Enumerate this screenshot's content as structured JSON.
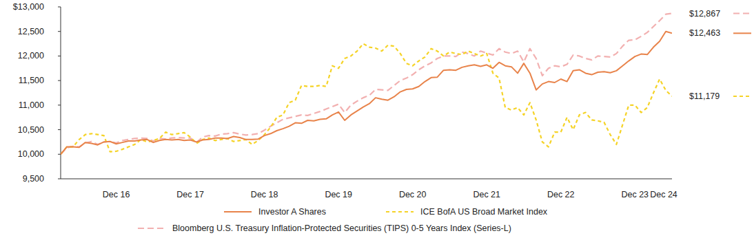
{
  "chart_data": {
    "type": "line",
    "categories": [
      null,
      null,
      null,
      null,
      null,
      null,
      null,
      null,
      null,
      "Dec 16",
      null,
      null,
      null,
      null,
      null,
      null,
      null,
      null,
      null,
      null,
      null,
      "Dec 17",
      null,
      null,
      null,
      null,
      null,
      null,
      null,
      null,
      null,
      null,
      null,
      "Dec 18",
      null,
      null,
      null,
      null,
      null,
      null,
      null,
      null,
      null,
      null,
      null,
      "Dec 19",
      null,
      null,
      null,
      null,
      null,
      null,
      null,
      null,
      null,
      null,
      null,
      "Dec 20",
      null,
      null,
      null,
      null,
      null,
      null,
      null,
      null,
      null,
      null,
      null,
      "Dec 21",
      null,
      null,
      null,
      null,
      null,
      null,
      null,
      null,
      null,
      null,
      null,
      "Dec 22",
      null,
      null,
      null,
      null,
      null,
      null,
      null,
      null,
      null,
      null,
      null,
      "Dec 23",
      null,
      null,
      null,
      null,
      null,
      "Dec 24"
    ],
    "ylim": [
      9500,
      13000
    ],
    "yticks": [
      {
        "value": 9500,
        "label": "9,500"
      },
      {
        "value": 10000,
        "label": "10,000"
      },
      {
        "value": 10500,
        "label": "10,500"
      },
      {
        "value": 11000,
        "label": "11,000"
      },
      {
        "value": 11500,
        "label": "11,500"
      },
      {
        "value": 12000,
        "label": "12,000"
      },
      {
        "value": 12500,
        "label": "12,500"
      },
      {
        "value": 13000,
        "label": "$13,000"
      }
    ],
    "grid": false,
    "legend": "bottom",
    "series": [
      {
        "name": "Investor A Shares",
        "color": "#e8834a",
        "line_style": "solid",
        "values": [
          10000,
          10150,
          10150,
          10140,
          10240,
          10220,
          10190,
          10250,
          10260,
          10210,
          10240,
          10270,
          10270,
          10290,
          10300,
          10240,
          10280,
          10300,
          10290,
          10300,
          10280,
          10290,
          10250,
          10290,
          10300,
          10330,
          10330,
          10320,
          10360,
          10340,
          10300,
          10300,
          10310,
          10380,
          10420,
          10480,
          10520,
          10570,
          10640,
          10630,
          10690,
          10680,
          10710,
          10720,
          10800,
          10860,
          10690,
          10800,
          10880,
          10960,
          11030,
          11150,
          11120,
          11100,
          11170,
          11270,
          11320,
          11330,
          11380,
          11480,
          11560,
          11570,
          11710,
          11720,
          11710,
          11770,
          11800,
          11820,
          11790,
          11820,
          11750,
          11870,
          11800,
          11780,
          11650,
          11850,
          11650,
          11310,
          11430,
          11480,
          11460,
          11530,
          11480,
          11700,
          11720,
          11650,
          11620,
          11670,
          11680,
          11660,
          11700,
          11800,
          11900,
          11990,
          12040,
          12030,
          12180,
          12300,
          12500,
          12463
        ]
      },
      {
        "name": "ICE BofA US Broad Market Index",
        "color": "#f5d327",
        "line_style": "dotted",
        "values": [
          10000,
          10150,
          10150,
          10300,
          10400,
          10420,
          10400,
          10380,
          10050,
          10060,
          10100,
          10150,
          10200,
          10300,
          10250,
          10280,
          10320,
          10450,
          10400,
          10420,
          10440,
          10350,
          10220,
          10300,
          10330,
          10280,
          10300,
          10320,
          10260,
          10280,
          10300,
          10200,
          10280,
          10400,
          10550,
          10750,
          10800,
          11050,
          11100,
          11400,
          11380,
          11380,
          11400,
          11380,
          11800,
          11750,
          11950,
          12000,
          12100,
          12250,
          12180,
          12160,
          12100,
          12220,
          12200,
          12050,
          11850,
          11800,
          11900,
          11980,
          12150,
          12100,
          12000,
          12080,
          12050,
          12030,
          12100,
          12050,
          12000,
          12050,
          11650,
          11550,
          10950,
          10900,
          10950,
          10800,
          11050,
          10700,
          10250,
          10150,
          10450,
          10450,
          10750,
          10500,
          10800,
          10850,
          10700,
          10680,
          10650,
          10400,
          10200,
          10600,
          11000,
          11000,
          10850,
          10950,
          11250,
          11530,
          11300,
          11179
        ]
      },
      {
        "name": "Bloomberg U.S. Treasury Inflation-Protected Securities (TIPS) 0-5 Years Index (Series-L)",
        "color": "#f2b0b0",
        "line_style": "dashed",
        "values": [
          10000,
          10130,
          10160,
          10150,
          10230,
          10260,
          10200,
          10250,
          10260,
          10230,
          10280,
          10300,
          10320,
          10330,
          10320,
          10270,
          10320,
          10310,
          10330,
          10340,
          10330,
          10330,
          10240,
          10350,
          10380,
          10370,
          10410,
          10420,
          10440,
          10410,
          10390,
          10400,
          10420,
          10490,
          10570,
          10640,
          10710,
          10740,
          10770,
          10800,
          10790,
          10830,
          10870,
          10920,
          10970,
          11020,
          10850,
          11000,
          11080,
          11150,
          11200,
          11320,
          11310,
          11300,
          11400,
          11500,
          11550,
          11620,
          11720,
          11800,
          11860,
          11950,
          12000,
          12000,
          11990,
          12080,
          12050,
          12000,
          12100,
          12060,
          12020,
          12150,
          12080,
          12050,
          12100,
          11880,
          12150,
          11950,
          11600,
          11750,
          11800,
          11780,
          11830,
          12020,
          12000,
          11950,
          11920,
          12000,
          11990,
          11980,
          12050,
          12200,
          12320,
          12330,
          12400,
          12480,
          12600,
          12720,
          12850,
          12867
        ]
      }
    ],
    "annotations": [
      {
        "text": "$12,867",
        "value": 12867
      },
      {
        "text": "$12,463",
        "value": 12463
      },
      {
        "text": "$11,179",
        "value": 11179
      }
    ]
  }
}
